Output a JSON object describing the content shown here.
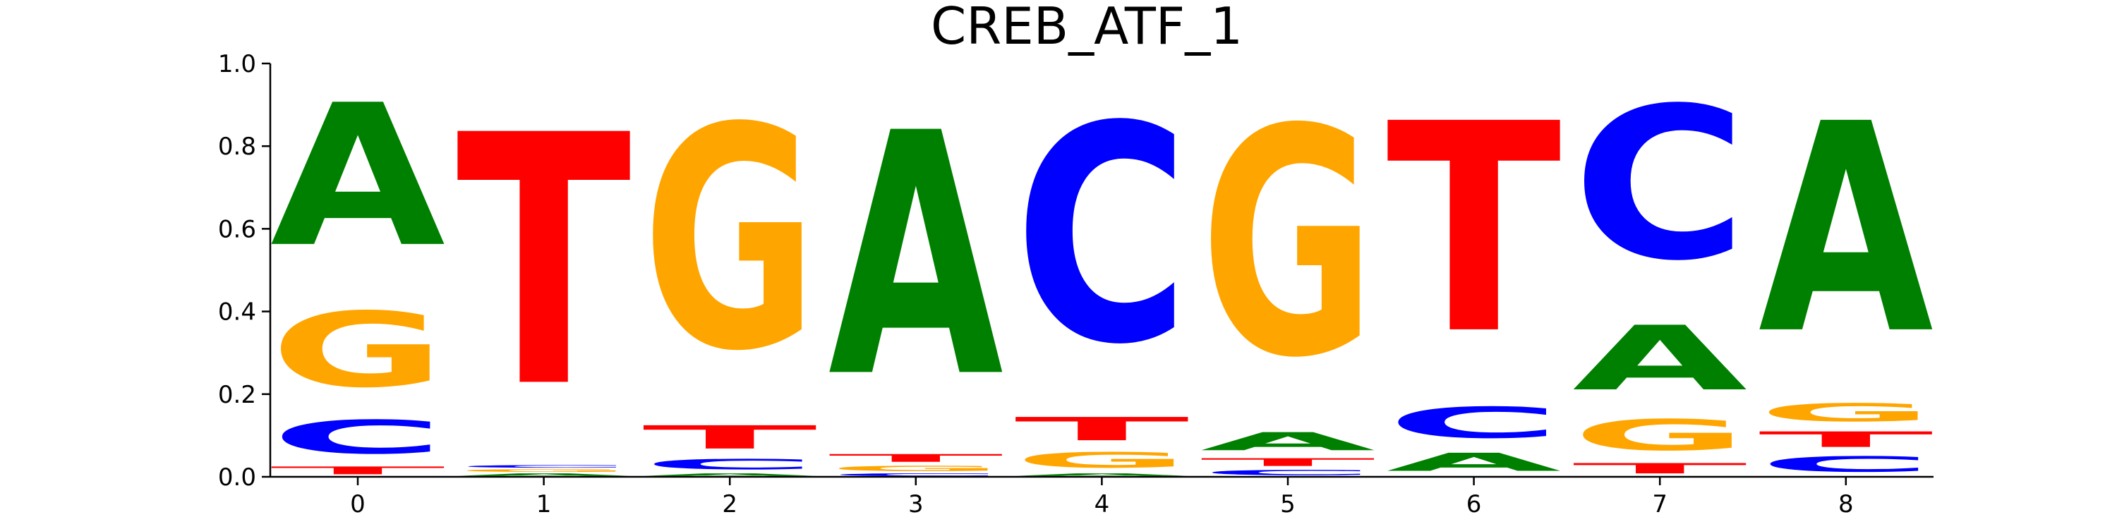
{
  "chart_data": {
    "type": "sequence-logo",
    "title": "CREB_ATF_1",
    "xlabel": "",
    "ylabel": "",
    "ylim": [
      0,
      1.0
    ],
    "yticks": [
      "0.0",
      "0.2",
      "0.4",
      "0.6",
      "0.8",
      "1.0"
    ],
    "positions": [
      "0",
      "1",
      "2",
      "3",
      "4",
      "5",
      "6",
      "7",
      "8"
    ],
    "grid": false,
    "colors": {
      "A": "#008000",
      "C": "#0000ff",
      "G": "#ffa500",
      "T": "#ff0000"
    },
    "columns": [
      [
        {
          "base": "T",
          "value": 0.03
        },
        {
          "base": "C",
          "value": 0.13
        },
        {
          "base": "G",
          "value": 0.29
        },
        {
          "base": "A",
          "value": 0.55
        }
      ],
      [
        {
          "base": "A",
          "value": 0.01
        },
        {
          "base": "G",
          "value": 0.01
        },
        {
          "base": "C",
          "value": 0.01
        },
        {
          "base": "T",
          "value": 0.97
        }
      ],
      [
        {
          "base": "A",
          "value": 0.01
        },
        {
          "base": "C",
          "value": 0.04
        },
        {
          "base": "T",
          "value": 0.09
        },
        {
          "base": "G",
          "value": 0.86
        }
      ],
      [
        {
          "base": "C",
          "value": 0.01
        },
        {
          "base": "G",
          "value": 0.02
        },
        {
          "base": "T",
          "value": 0.03
        },
        {
          "base": "A",
          "value": 0.94
        }
      ],
      [
        {
          "base": "A",
          "value": 0.01
        },
        {
          "base": "G",
          "value": 0.06
        },
        {
          "base": "T",
          "value": 0.09
        },
        {
          "base": "C",
          "value": 0.84
        }
      ],
      [
        {
          "base": "C",
          "value": 0.02
        },
        {
          "base": "T",
          "value": 0.03
        },
        {
          "base": "A",
          "value": 0.07
        },
        {
          "base": "G",
          "value": 0.88
        }
      ],
      [
        {
          "base": "A",
          "value": 0.07
        },
        {
          "base": "C",
          "value": 0.12
        },
        {
          "base": "T",
          "value": 0.81
        }
      ],
      [
        {
          "base": "T",
          "value": 0.04
        },
        {
          "base": "G",
          "value": 0.12
        },
        {
          "base": "A",
          "value": 0.25
        },
        {
          "base": "C",
          "value": 0.59
        }
      ],
      [
        {
          "base": "C",
          "value": 0.06
        },
        {
          "base": "T",
          "value": 0.06
        },
        {
          "base": "G",
          "value": 0.07
        },
        {
          "base": "A",
          "value": 0.81
        }
      ]
    ]
  }
}
